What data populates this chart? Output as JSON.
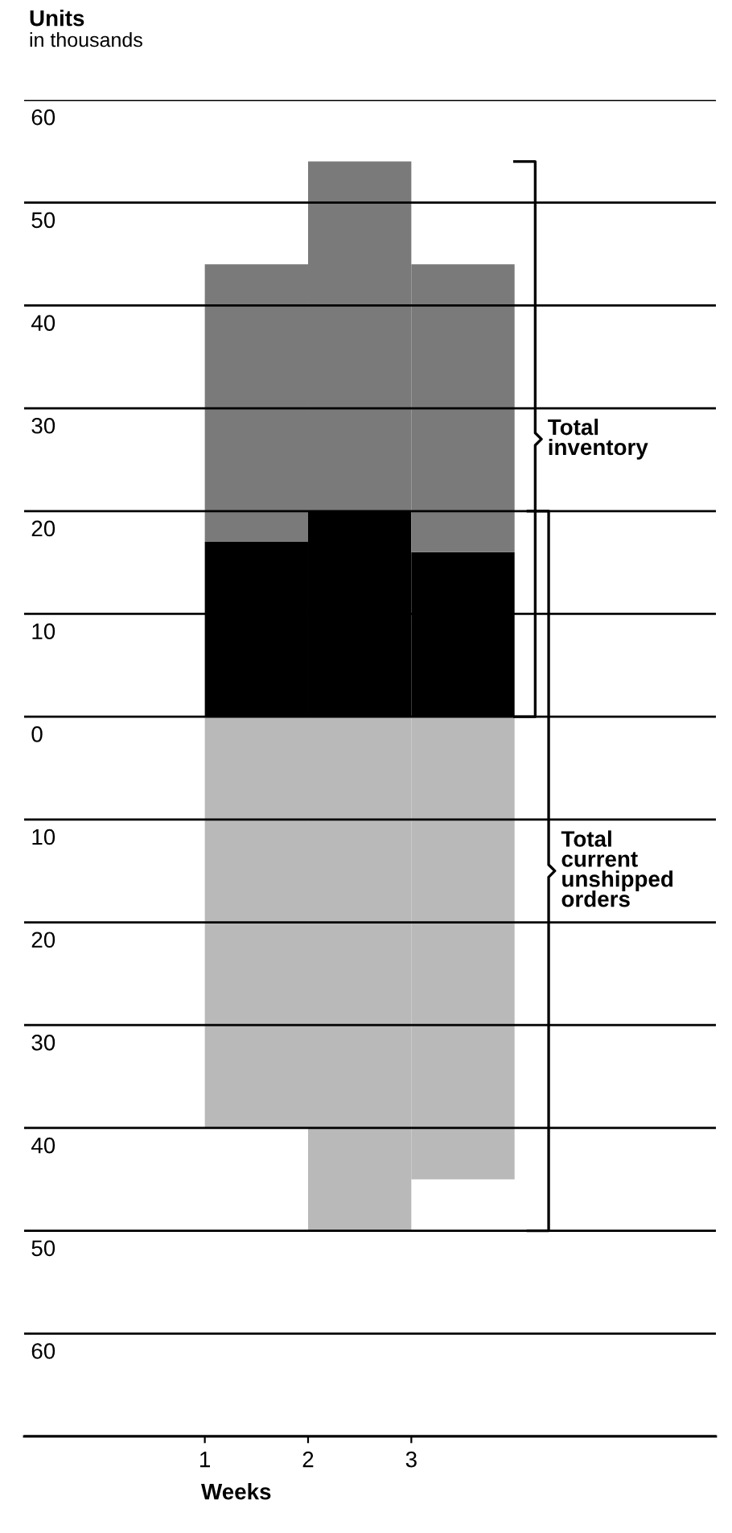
{
  "chart_data": {
    "type": "bar",
    "title": "Units",
    "subtitle": "in thousands",
    "xlabel": "Weeks",
    "x": [
      1.5,
      2.5,
      3.5
    ],
    "stacked": true,
    "series": [
      {
        "color": "#000000",
        "values": [
          17,
          20,
          16
        ]
      },
      {
        "color": "#7a7a7a",
        "values": [
          27,
          34,
          28
        ]
      },
      {
        "color": "#b9b9b9",
        "values": [
          -40,
          -50,
          -45
        ]
      }
    ],
    "xlim": [
      -0.75,
      5.95
    ],
    "xticks": [
      1,
      2,
      3
    ],
    "ylim": [
      -70,
      60
    ],
    "yticks": [
      {
        "value": -70,
        "label": null
      },
      {
        "value": -60,
        "label": "60"
      },
      {
        "value": -50,
        "label": "50"
      },
      {
        "value": -40,
        "label": "40"
      },
      {
        "value": -30,
        "label": "30"
      },
      {
        "value": -20,
        "label": "20"
      },
      {
        "value": -10,
        "label": "10"
      },
      0,
      10,
      20,
      30,
      40,
      50,
      60
    ],
    "grid": "y",
    "annotations": [
      "Total\ninventory",
      "Total\ncurrent\nunshipped\norders"
    ]
  }
}
